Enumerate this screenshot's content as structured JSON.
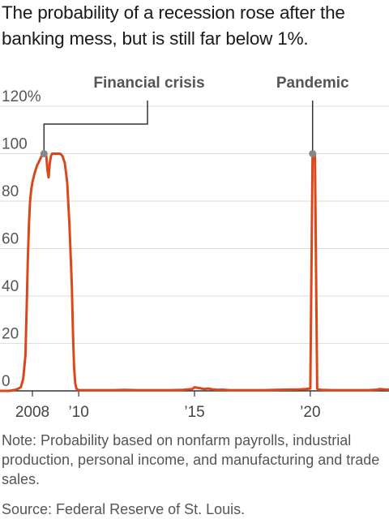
{
  "title": "The probability of a recession rose after the banking mess, but is still far below 1%.",
  "note": "Note: Probability based on nonfarm payrolls, industrial production, personal income, and manufacturing and trade sales.",
  "source": "Source: Federal Reserve of St. Louis.",
  "chart_data": {
    "type": "line",
    "title": "The probability of a recession rose after the banking mess, but is still far below 1%.",
    "xlabel": "",
    "ylabel": "",
    "ylim": [
      0,
      120
    ],
    "xlim": [
      2006.6,
      2023.4
    ],
    "grid": true,
    "y_ticks": [
      0,
      20,
      40,
      60,
      80,
      100,
      120
    ],
    "y_tick_labels": [
      "0",
      "20",
      "40",
      "60",
      "80",
      "100",
      "120%"
    ],
    "x_ticks": [
      2008,
      2010,
      2015,
      2020
    ],
    "x_tick_labels": [
      "2008",
      "’10",
      "’15",
      "’20"
    ],
    "colors": {
      "line": "#d9481c",
      "annotation": "#333333",
      "axis": "#333333",
      "grid": "#dddddd"
    },
    "series": [
      {
        "x": [
          2006.6,
          2007.0,
          2007.3,
          2007.5,
          2007.6,
          2007.7,
          2007.75,
          2007.8,
          2007.85,
          2007.9,
          2007.95,
          2008.0,
          2008.1,
          2008.2,
          2008.3,
          2008.4,
          2008.5,
          2008.6,
          2008.65,
          2008.7,
          2008.75,
          2008.8,
          2008.85,
          2008.9,
          2009.0,
          2009.1,
          2009.2,
          2009.3,
          2009.4,
          2009.5,
          2009.6,
          2009.7,
          2009.75,
          2009.8,
          2009.85,
          2009.9,
          2009.95,
          2010.0,
          2010.5,
          2011.0,
          2011.5,
          2012.0,
          2012.5,
          2013.0,
          2013.5,
          2014.0,
          2014.5,
          2014.9,
          2015.0,
          2015.2,
          2015.4,
          2015.6,
          2015.8,
          2016.0,
          2016.2,
          2016.5,
          2017.0,
          2017.5,
          2018.0,
          2018.5,
          2019.0,
          2019.5,
          2019.8,
          2020.0,
          2020.05,
          2020.1,
          2020.2,
          2020.25,
          2020.3,
          2020.35,
          2020.4,
          2020.5,
          2021.0,
          2021.5,
          2022.0,
          2022.5,
          2022.9,
          2023.0,
          2023.2,
          2023.4
        ],
        "y": [
          0,
          0,
          0.5,
          1.5,
          5,
          15,
          35,
          55,
          70,
          80,
          85,
          88,
          92,
          95,
          97,
          99,
          100,
          99,
          93,
          90,
          96,
          99,
          100,
          100,
          100,
          100,
          100,
          99,
          96,
          88,
          70,
          45,
          25,
          10,
          3,
          1,
          0.5,
          0.3,
          0.3,
          0.3,
          0.3,
          0.4,
          0.3,
          0.3,
          0.3,
          0.3,
          0.4,
          0.8,
          1.5,
          1.2,
          0.8,
          1.0,
          0.6,
          0.4,
          0.5,
          0.3,
          0.3,
          0.3,
          0.3,
          0.4,
          0.5,
          0.6,
          0.8,
          1.0,
          50,
          100,
          100,
          50,
          1.0,
          0.5,
          0.5,
          0.4,
          0.3,
          0.3,
          0.3,
          0.3,
          0.5,
          0.8,
          0.6,
          0.5
        ]
      }
    ],
    "annotations": [
      {
        "label": "Financial crisis",
        "x": 2008.5,
        "y": 100
      },
      {
        "label": "Pandemic",
        "x": 2020.1,
        "y": 100
      }
    ]
  }
}
